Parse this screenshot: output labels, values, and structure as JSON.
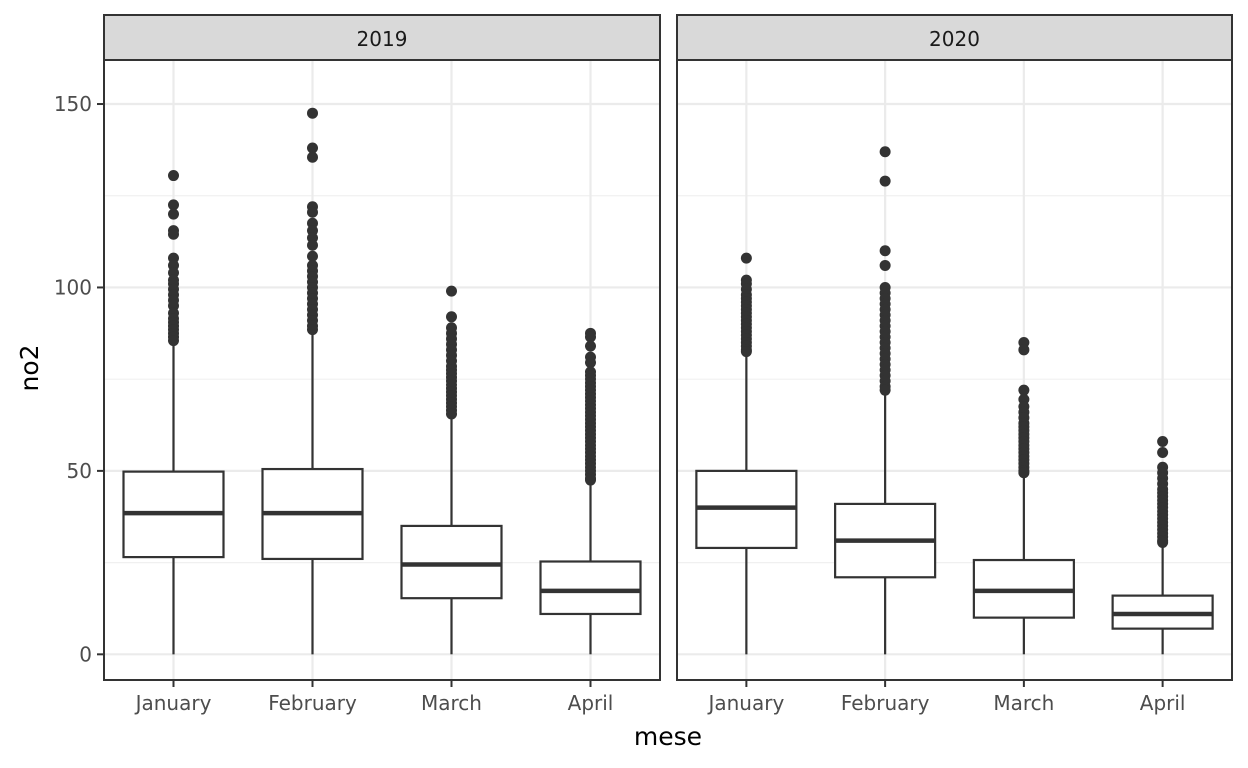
{
  "chart_data": {
    "type": "boxplot",
    "xlabel": "mese",
    "ylabel": "no2",
    "ylim": [
      -7,
      162
    ],
    "yticks": [
      0,
      50,
      100,
      150
    ],
    "categories": [
      "January",
      "February",
      "March",
      "April"
    ],
    "grid": true,
    "facets": [
      {
        "label": "2019",
        "boxes": [
          {
            "category": "January",
            "q1": 26.5,
            "median": 38.5,
            "q3": 49.8,
            "whisker_low": 0,
            "whisker_high": 84.5,
            "outliers": [
              130.5,
              122.5,
              120,
              115.5,
              114.5,
              108,
              106,
              104,
              102,
              101,
              99.5,
              98,
              96.5,
              95,
              93,
              91.5,
              90.5,
              89.5,
              88.5,
              87.5,
              86.5,
              85.5
            ]
          },
          {
            "category": "February",
            "q1": 26,
            "median": 38.5,
            "q3": 50.5,
            "whisker_low": 0,
            "whisker_high": 87.5,
            "outliers": [
              147.5,
              138,
              135.5,
              122,
              120.5,
              117.5,
              115.5,
              113.5,
              111.5,
              108.5,
              106,
              104.5,
              103,
              101.5,
              100,
              98.5,
              97,
              95.5,
              94,
              92.5,
              91,
              89.5,
              88.5
            ]
          },
          {
            "category": "March",
            "q1": 15.3,
            "median": 24.5,
            "q3": 35,
            "whisker_low": 0,
            "whisker_high": 64.5,
            "outliers": [
              99,
              92,
              89,
              87.5,
              86,
              84.5,
              83,
              81.5,
              80,
              78.5,
              77.5,
              76.5,
              75.5,
              74.5,
              73.5,
              72.5,
              71.5,
              70.5,
              69.5,
              68.5,
              67.5,
              66.5,
              65.5
            ]
          },
          {
            "category": "April",
            "q1": 11,
            "median": 17.3,
            "q3": 25.3,
            "whisker_low": 0,
            "whisker_high": 46.5,
            "outliers": [
              87.5,
              86.5,
              84,
              81,
              79.5,
              77,
              76,
              75,
              74,
              73,
              72,
              71,
              70,
              69,
              68,
              67,
              66,
              65,
              64,
              63,
              62,
              61,
              60,
              59,
              58,
              57,
              56,
              55,
              54,
              53,
              52,
              51,
              50,
              49,
              48,
              47.5
            ]
          }
        ]
      },
      {
        "label": "2020",
        "boxes": [
          {
            "category": "January",
            "q1": 29,
            "median": 40,
            "q3": 50,
            "whisker_low": 0,
            "whisker_high": 81.5,
            "outliers": [
              108,
              102,
              101,
              99.5,
              98,
              97,
              96,
              95,
              94,
              93,
              92,
              91,
              90,
              89,
              88,
              87,
              86,
              85,
              84,
              83,
              82.5
            ]
          },
          {
            "category": "February",
            "q1": 21,
            "median": 31,
            "q3": 41,
            "whisker_low": 0,
            "whisker_high": 71.5,
            "outliers": [
              137,
              129,
              110,
              106,
              100,
              98.5,
              97,
              95.5,
              94,
              92.5,
              91,
              89.5,
              88,
              86.5,
              85,
              83.5,
              82,
              80.5,
              79,
              77.5,
              76,
              74.5,
              73,
              72
            ]
          },
          {
            "category": "March",
            "q1": 10,
            "median": 17.3,
            "q3": 25.7,
            "whisker_low": 0,
            "whisker_high": 49,
            "outliers": [
              85,
              83,
              72,
              69.5,
              67.5,
              66,
              64.5,
              63,
              62,
              61,
              60,
              59,
              58,
              57,
              56,
              55,
              54,
              53,
              52,
              51,
              50,
              49.5
            ]
          },
          {
            "category": "April",
            "q1": 7,
            "median": 11,
            "q3": 16,
            "whisker_low": 0,
            "whisker_high": 29.5,
            "outliers": [
              58,
              55,
              51,
              49.5,
              48,
              46.5,
              45,
              44,
              43,
              42,
              41,
              40,
              39,
              38,
              37,
              36,
              35,
              34,
              33,
              32,
              31,
              30.5
            ]
          }
        ]
      }
    ]
  }
}
